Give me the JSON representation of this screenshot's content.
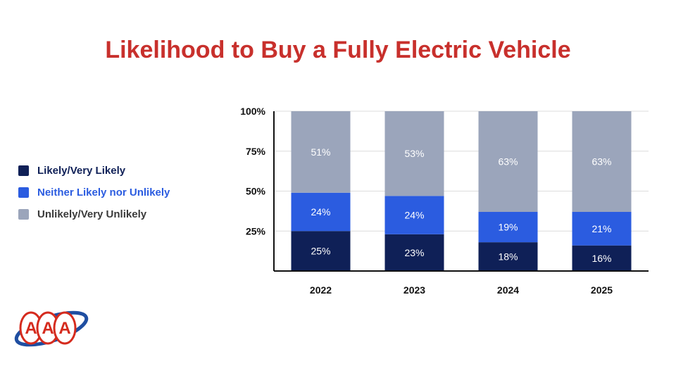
{
  "chart_data": {
    "type": "bar",
    "stacked": true,
    "title": "Likelihood to Buy a Fully Electric Vehicle",
    "categories": [
      "2022",
      "2023",
      "2024",
      "2025"
    ],
    "series": [
      {
        "name": "Likely/Very Likely",
        "color": "#0f2057",
        "values": [
          25,
          23,
          18,
          16
        ],
        "labels": [
          "25%",
          "23%",
          "18%",
          "16%"
        ]
      },
      {
        "name": "Neither Likely nor Unlikely",
        "color": "#2b5ce0",
        "values": [
          24,
          24,
          19,
          21
        ],
        "labels": [
          "24%",
          "24%",
          "19%",
          "21%"
        ]
      },
      {
        "name": "Unlikely/Very Unlikely",
        "color": "#9ba5bb",
        "values": [
          51,
          53,
          63,
          63
        ],
        "labels": [
          "51%",
          "53%",
          "63%",
          "63%"
        ]
      }
    ],
    "ylim": [
      0,
      100
    ],
    "yticks": [
      25,
      50,
      75,
      100
    ],
    "ytick_labels": [
      "25%",
      "50%",
      "75%",
      "100%"
    ],
    "grid": true,
    "legend_position": "left"
  },
  "legend_label_colors": [
    "#0f2057",
    "#2b5ce0",
    "#3a3a3a"
  ],
  "logo": {
    "text": "AAA",
    "color": "#d52b1e",
    "swoosh_color": "#1f4ea1"
  }
}
